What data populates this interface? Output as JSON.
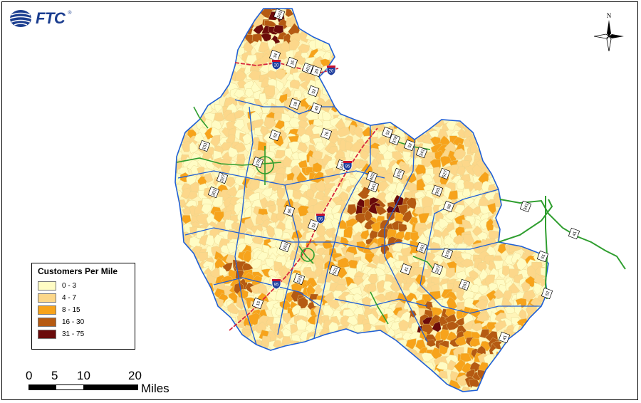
{
  "logo": {
    "text": "FTC",
    "reg": "®"
  },
  "north": {
    "letter": "N"
  },
  "legend": {
    "title": "Customers Per Mile",
    "classes": [
      {
        "label": "0 - 3",
        "color": "#fffcc4"
      },
      {
        "label": "4 - 7",
        "color": "#fcd78a"
      },
      {
        "label": "8 - 15",
        "color": "#f7a31b"
      },
      {
        "label": "16 - 30",
        "color": "#b55a12"
      },
      {
        "label": "31 - 75",
        "color": "#6b0b0b"
      }
    ]
  },
  "scale": {
    "ticks": [
      "0",
      "5",
      "10",
      "20"
    ],
    "units": "Miles"
  },
  "colors": {
    "boundary": "#1f5fd6",
    "interstate": "#d7263d",
    "highway": "#2f9e2f",
    "shield": "#1f3f9e"
  },
  "map": {
    "route_labels": [
      "341",
      "34",
      "20",
      "15",
      "401",
      "52",
      "18",
      "40",
      "76",
      "52",
      "378",
      "151",
      "327",
      "301",
      "95",
      "341",
      "52",
      "378",
      "52",
      "403",
      "341",
      "341",
      "527",
      "301",
      "378",
      "52",
      "261",
      "521",
      "15",
      "521",
      "58",
      "327",
      "261",
      "378",
      "41",
      "261",
      "41",
      "51",
      "52",
      "41",
      "341"
    ],
    "interstate_shields": [
      "20",
      "20",
      "95",
      "95",
      "95"
    ]
  }
}
